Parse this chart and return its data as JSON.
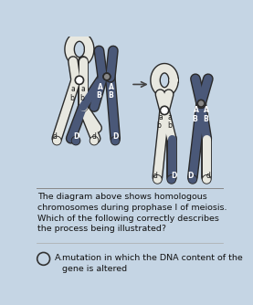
{
  "bg_color": "#c5d5e4",
  "title_text": "The diagram above shows homologous\nchromosomes during prophase I of meiosis.\nWhich of the following correctly describes\nthe process being illustrated?",
  "answer_text": "mutation in which the DNA content of the\ngene is altered",
  "answer_label": "A.",
  "title_fontsize": 6.8,
  "answer_fontsize": 6.8,
  "chrom_white": "#e8e8e0",
  "chrom_blue": "#4a5878",
  "chrom_outline": "#2a2a2a",
  "label_color": "#1a1a1a",
  "line_color": "#666666"
}
